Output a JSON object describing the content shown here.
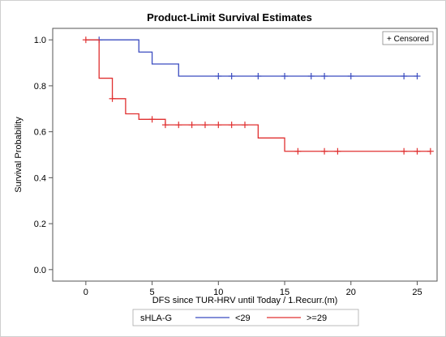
{
  "chart_data": {
    "type": "line",
    "title": "Product-Limit Survival Estimates",
    "xlabel": "DFS since TUR-HRV until Today / 1.Recurr.(m)",
    "ylabel": "Survival Probability",
    "xlim": [
      -2.5,
      26.5
    ],
    "ylim": [
      -0.05,
      1.05
    ],
    "xticks": [
      0,
      5,
      10,
      15,
      20,
      25
    ],
    "yticks": [
      0.0,
      0.2,
      0.4,
      0.6,
      0.8,
      1.0
    ],
    "ytick_labels": [
      "0.0",
      "0.2",
      "0.4",
      "0.6",
      "0.8",
      "1.0"
    ],
    "grid": false,
    "censored_label": "+ Censored",
    "legend": {
      "title": "sHLA-G",
      "position": "bottom"
    },
    "series": [
      {
        "name": "<29",
        "color": "#3b4cc0",
        "steps": [
          [
            0,
            1.0
          ],
          [
            4,
            0.947
          ],
          [
            5,
            0.895
          ],
          [
            7,
            0.842
          ]
        ],
        "end_x": 25,
        "censored": [
          [
            1,
            1.0
          ],
          [
            10,
            0.842
          ],
          [
            11,
            0.842
          ],
          [
            13,
            0.842
          ],
          [
            15,
            0.842
          ],
          [
            17,
            0.842
          ],
          [
            18,
            0.842
          ],
          [
            20,
            0.842
          ],
          [
            24,
            0.842
          ],
          [
            25,
            0.842
          ]
        ]
      },
      {
        "name": ">=29",
        "color": "#e03030",
        "steps": [
          [
            0,
            1.0
          ],
          [
            1,
            0.833
          ],
          [
            2,
            0.744
          ],
          [
            3,
            0.678
          ],
          [
            4,
            0.654
          ],
          [
            6,
            0.63
          ],
          [
            13,
            0.573
          ],
          [
            15,
            0.515
          ]
        ],
        "end_x": 26,
        "censored": [
          [
            0,
            1.0
          ],
          [
            2,
            0.744
          ],
          [
            5,
            0.654
          ],
          [
            6,
            0.63
          ],
          [
            7,
            0.63
          ],
          [
            8,
            0.63
          ],
          [
            9,
            0.63
          ],
          [
            10,
            0.63
          ],
          [
            11,
            0.63
          ],
          [
            12,
            0.63
          ],
          [
            16,
            0.515
          ],
          [
            18,
            0.515
          ],
          [
            19,
            0.515
          ],
          [
            24,
            0.515
          ],
          [
            25,
            0.515
          ],
          [
            26,
            0.515
          ]
        ]
      }
    ]
  }
}
